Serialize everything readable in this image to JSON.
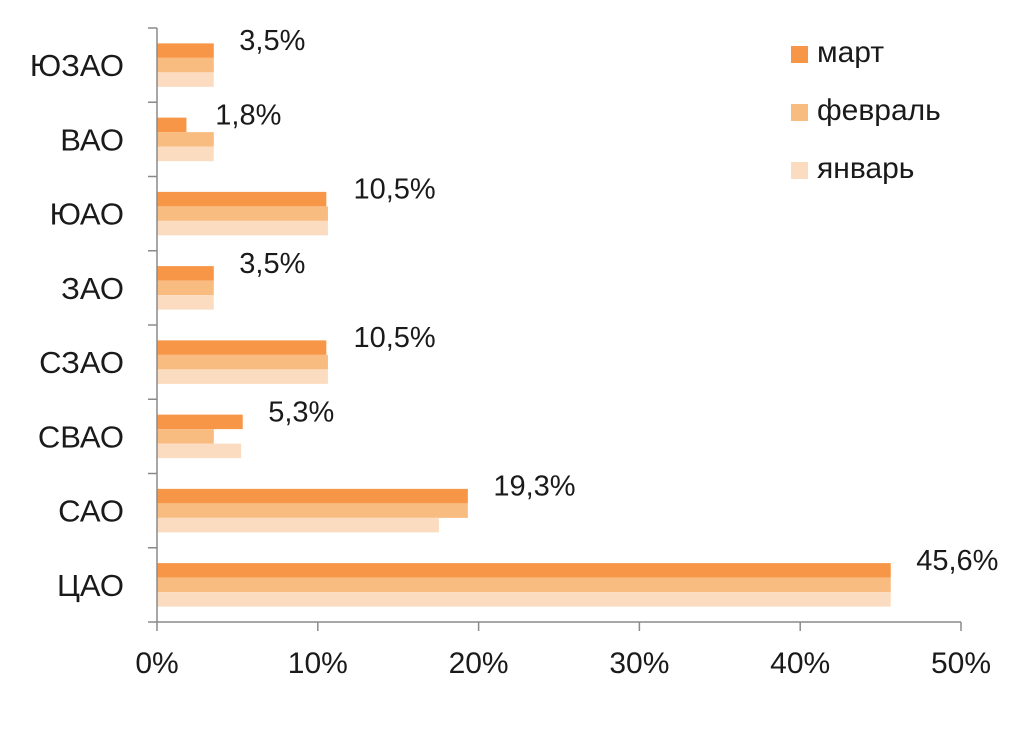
{
  "chart_data": {
    "type": "bar",
    "orientation": "horizontal",
    "categories": [
      "ЮЗАО",
      "ВАО",
      "ЮАО",
      "ЗАО",
      "СЗАО",
      "СВАО",
      "САО",
      "ЦАО"
    ],
    "series": [
      {
        "name": "март",
        "color": "#f79646",
        "values": [
          3.5,
          1.8,
          10.5,
          3.5,
          10.5,
          5.3,
          19.3,
          45.6
        ]
      },
      {
        "name": "февраль",
        "color": "#f9bc80",
        "values": [
          3.5,
          3.5,
          10.6,
          3.5,
          10.6,
          3.5,
          19.3,
          45.6
        ]
      },
      {
        "name": "январь",
        "color": "#fcdcc0",
        "values": [
          3.5,
          3.5,
          10.6,
          3.5,
          10.6,
          5.2,
          17.5,
          45.6
        ]
      }
    ],
    "data_labels": [
      "3,5%",
      "1,8%",
      "10,5%",
      "3,5%",
      "10,5%",
      "5,3%",
      "19,3%",
      "45,6%"
    ],
    "xlim": [
      0,
      50
    ],
    "x_ticks": [
      0,
      10,
      20,
      30,
      40,
      50
    ],
    "x_tick_labels": [
      "0%",
      "10%",
      "20%",
      "30%",
      "40%",
      "50%"
    ],
    "title": "",
    "xlabel": "",
    "ylabel": "",
    "legend_position": "top-right",
    "grid": false
  }
}
